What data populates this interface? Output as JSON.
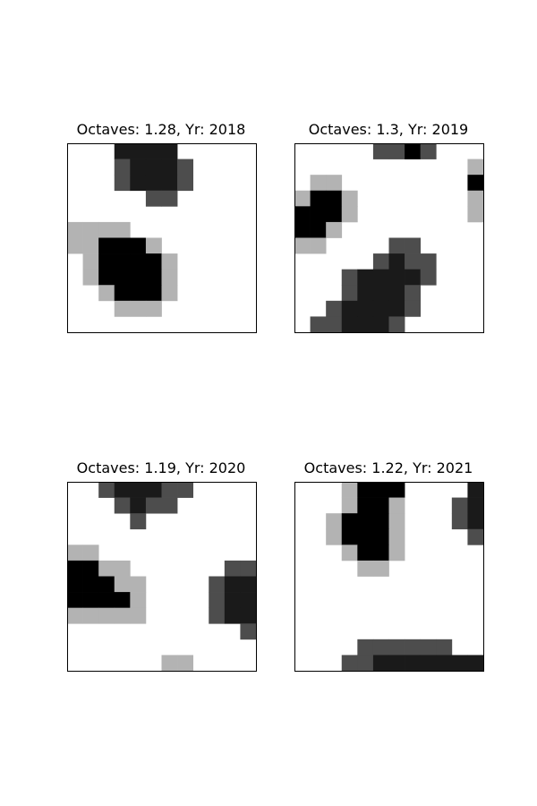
{
  "chart_data": [
    {
      "type": "heatmap",
      "title": "Octaves: 1.28, Yr: 2018",
      "grid_rows": 12,
      "grid_cols": 12,
      "grid": false,
      "colormap": "gray_r",
      "cells": [
        [
          0,
          0,
          0,
          3,
          3,
          3,
          3,
          0,
          0,
          0,
          0,
          0
        ],
        [
          0,
          0,
          0,
          2,
          3,
          3,
          3,
          2,
          0,
          0,
          0,
          0
        ],
        [
          0,
          0,
          0,
          2,
          3,
          3,
          3,
          2,
          0,
          0,
          0,
          0
        ],
        [
          0,
          0,
          0,
          0,
          0,
          2,
          2,
          0,
          0,
          0,
          0,
          0
        ],
        [
          0,
          0,
          0,
          0,
          0,
          0,
          0,
          0,
          0,
          0,
          0,
          0
        ],
        [
          1,
          1,
          1,
          1,
          0,
          0,
          0,
          0,
          0,
          0,
          0,
          0
        ],
        [
          1,
          1,
          4,
          4,
          4,
          1,
          0,
          0,
          0,
          0,
          0,
          0
        ],
        [
          0,
          1,
          4,
          4,
          4,
          4,
          1,
          0,
          0,
          0,
          0,
          0
        ],
        [
          0,
          1,
          4,
          4,
          4,
          4,
          1,
          0,
          0,
          0,
          0,
          0
        ],
        [
          0,
          0,
          1,
          4,
          4,
          4,
          1,
          0,
          0,
          0,
          0,
          0
        ],
        [
          0,
          0,
          0,
          1,
          1,
          1,
          0,
          0,
          0,
          0,
          0,
          0
        ],
        [
          0,
          0,
          0,
          0,
          0,
          0,
          0,
          0,
          0,
          0,
          0,
          0
        ]
      ]
    },
    {
      "type": "heatmap",
      "title": "Octaves: 1.3, Yr: 2019",
      "grid_rows": 12,
      "grid_cols": 12,
      "grid": false,
      "colormap": "gray_r",
      "cells": [
        [
          0,
          0,
          0,
          0,
          0,
          2,
          2,
          4,
          2,
          0,
          0,
          0
        ],
        [
          0,
          0,
          0,
          0,
          0,
          0,
          0,
          0,
          0,
          0,
          0,
          1
        ],
        [
          0,
          1,
          1,
          0,
          0,
          0,
          0,
          0,
          0,
          0,
          0,
          4
        ],
        [
          1,
          4,
          4,
          1,
          0,
          0,
          0,
          0,
          0,
          0,
          0,
          1
        ],
        [
          4,
          4,
          4,
          1,
          0,
          0,
          0,
          0,
          0,
          0,
          0,
          1
        ],
        [
          4,
          4,
          1,
          0,
          0,
          0,
          0,
          0,
          0,
          0,
          0,
          0
        ],
        [
          1,
          1,
          0,
          0,
          0,
          0,
          2,
          2,
          0,
          0,
          0,
          0
        ],
        [
          0,
          0,
          0,
          0,
          0,
          2,
          3,
          2,
          2,
          0,
          0,
          0
        ],
        [
          0,
          0,
          0,
          2,
          3,
          3,
          3,
          3,
          2,
          0,
          0,
          0
        ],
        [
          0,
          0,
          0,
          2,
          3,
          3,
          3,
          2,
          0,
          0,
          0,
          0
        ],
        [
          0,
          0,
          2,
          3,
          3,
          3,
          3,
          2,
          0,
          0,
          0,
          0
        ],
        [
          0,
          2,
          2,
          3,
          3,
          3,
          2,
          0,
          0,
          0,
          0,
          0
        ]
      ]
    },
    {
      "type": "heatmap",
      "title": "Octaves: 1.19, Yr: 2020",
      "grid_rows": 12,
      "grid_cols": 12,
      "grid": false,
      "colormap": "gray_r",
      "cells": [
        [
          0,
          0,
          2,
          3,
          3,
          3,
          2,
          2,
          0,
          0,
          0,
          0
        ],
        [
          0,
          0,
          0,
          2,
          3,
          2,
          2,
          0,
          0,
          0,
          0,
          0
        ],
        [
          0,
          0,
          0,
          0,
          2,
          0,
          0,
          0,
          0,
          0,
          0,
          0
        ],
        [
          0,
          0,
          0,
          0,
          0,
          0,
          0,
          0,
          0,
          0,
          0,
          0
        ],
        [
          1,
          1,
          0,
          0,
          0,
          0,
          0,
          0,
          0,
          0,
          0,
          0
        ],
        [
          4,
          4,
          1,
          1,
          0,
          0,
          0,
          0,
          0,
          0,
          2,
          2
        ],
        [
          4,
          4,
          4,
          1,
          1,
          0,
          0,
          0,
          0,
          2,
          3,
          3
        ],
        [
          4,
          4,
          4,
          4,
          1,
          0,
          0,
          0,
          0,
          2,
          3,
          3
        ],
        [
          1,
          1,
          1,
          1,
          1,
          0,
          0,
          0,
          0,
          2,
          3,
          3
        ],
        [
          0,
          0,
          0,
          0,
          0,
          0,
          0,
          0,
          0,
          0,
          0,
          2
        ],
        [
          0,
          0,
          0,
          0,
          0,
          0,
          0,
          0,
          0,
          0,
          0,
          0
        ],
        [
          0,
          0,
          0,
          0,
          0,
          0,
          1,
          1,
          0,
          0,
          0,
          0
        ]
      ]
    },
    {
      "type": "heatmap",
      "title": "Octaves: 1.22, Yr: 2021",
      "grid_rows": 12,
      "grid_cols": 12,
      "grid": false,
      "colormap": "gray_r",
      "cells": [
        [
          0,
          0,
          0,
          1,
          4,
          4,
          4,
          0,
          0,
          0,
          0,
          3
        ],
        [
          0,
          0,
          0,
          1,
          4,
          4,
          1,
          0,
          0,
          0,
          2,
          3
        ],
        [
          0,
          0,
          1,
          4,
          4,
          4,
          1,
          0,
          0,
          0,
          2,
          3
        ],
        [
          0,
          0,
          1,
          4,
          4,
          4,
          1,
          0,
          0,
          0,
          0,
          2
        ],
        [
          0,
          0,
          0,
          1,
          4,
          4,
          1,
          0,
          0,
          0,
          0,
          0
        ],
        [
          0,
          0,
          0,
          0,
          1,
          1,
          0,
          0,
          0,
          0,
          0,
          0
        ],
        [
          0,
          0,
          0,
          0,
          0,
          0,
          0,
          0,
          0,
          0,
          0,
          0
        ],
        [
          0,
          0,
          0,
          0,
          0,
          0,
          0,
          0,
          0,
          0,
          0,
          0
        ],
        [
          0,
          0,
          0,
          0,
          0,
          0,
          0,
          0,
          0,
          0,
          0,
          0
        ],
        [
          0,
          0,
          0,
          0,
          0,
          0,
          0,
          0,
          0,
          0,
          0,
          0
        ],
        [
          0,
          0,
          0,
          0,
          2,
          2,
          2,
          2,
          2,
          2,
          0,
          0
        ],
        [
          0,
          0,
          0,
          2,
          2,
          3,
          3,
          3,
          3,
          3,
          3,
          3
        ]
      ]
    }
  ],
  "palette": [
    "#ffffff",
    "#b3b3b3",
    "#4d4d4d",
    "#1a1a1a",
    "#000000"
  ]
}
